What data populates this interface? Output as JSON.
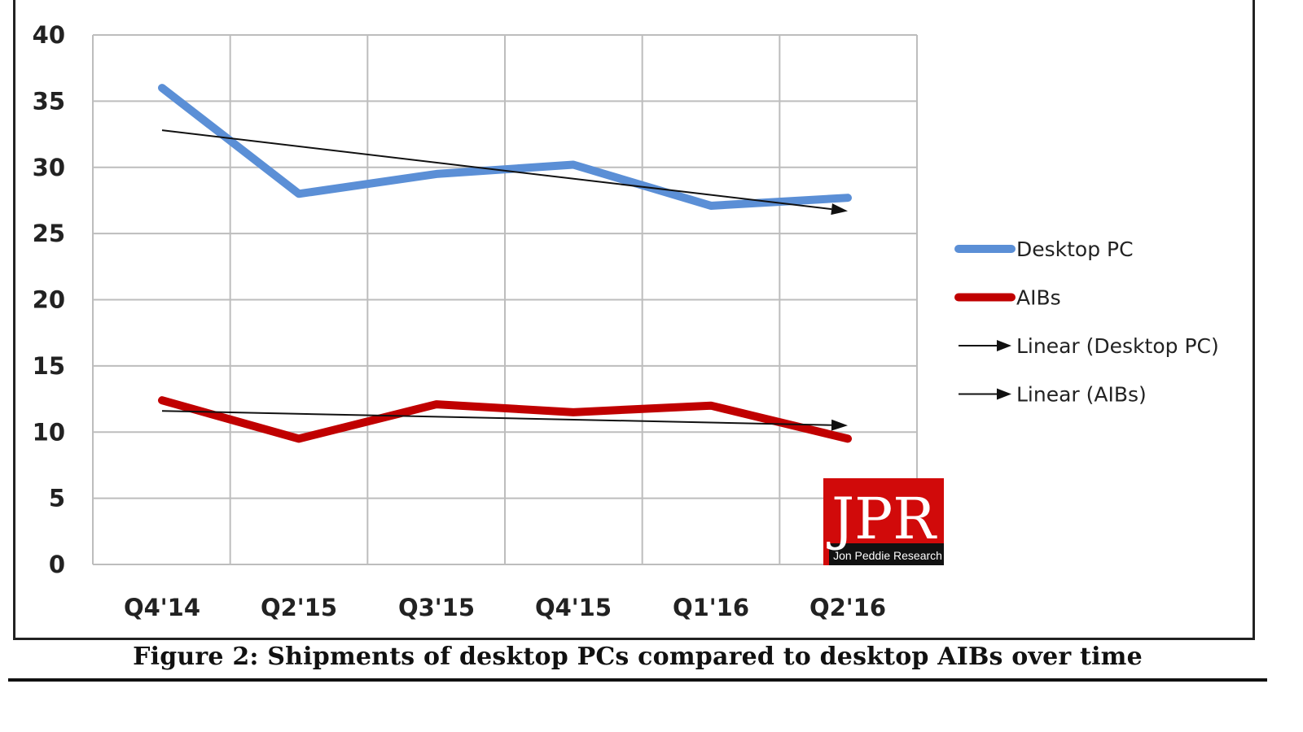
{
  "chart_data": {
    "type": "line",
    "categories": [
      "Q4'14",
      "Q2'15",
      "Q3'15",
      "Q4'15",
      "Q1'16",
      "Q2'16"
    ],
    "series": [
      {
        "name": "Desktop PC",
        "values": [
          36,
          28,
          29.5,
          30.2,
          27.1,
          27.7
        ],
        "color": "#5b8fd6"
      },
      {
        "name": "AIBs",
        "values": [
          12.4,
          9.5,
          12.1,
          11.5,
          12.0,
          9.5
        ],
        "color": "#c00000"
      }
    ],
    "trendlines": [
      {
        "name": "Linear (Desktop PC)",
        "start": 32.8,
        "end": 26.7,
        "color": "#111111"
      },
      {
        "name": "Linear (AIBs)",
        "start": 11.6,
        "end": 10.5,
        "color": "#111111"
      }
    ],
    "ylim": [
      0,
      40
    ],
    "yticks": [
      "0",
      "5",
      "10",
      "15",
      "20",
      "25",
      "30",
      "35",
      "40"
    ],
    "grid": true,
    "legend_position": "right",
    "title": "",
    "xlabel": "",
    "ylabel": ""
  },
  "caption": "Figure 2: Shipments of desktop PCs compared to desktop AIBs over time",
  "logo": {
    "letters": "JPR",
    "subtitle": "Jon Peddie Research",
    "background": "#d10a0a",
    "band": "#111111"
  }
}
